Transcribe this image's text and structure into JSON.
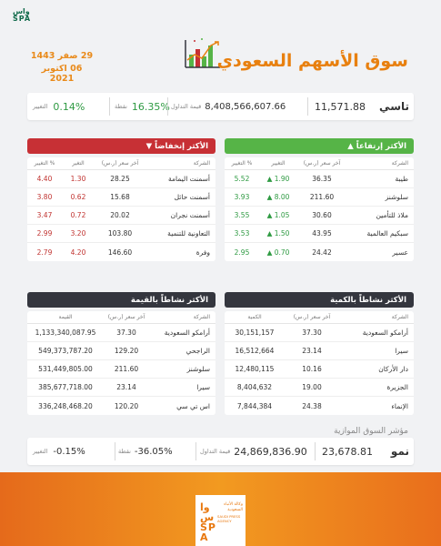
{
  "header": {
    "logo_line1": "واس",
    "logo_line2": "SPA",
    "date_hijri": "29 صفر 1443",
    "date_gregorian": "06 اكتوبر 2021",
    "title": "سوق الأسهم السعودي"
  },
  "summary": {
    "index_name": "تاسي",
    "index_value": "11,571.88",
    "turnover_value": "8,408,566,607.66",
    "turnover_label": "قيمة التداول",
    "points_value": "16.35%",
    "points_label": "نقطة",
    "change_value": "0.14%",
    "change_label": "التغيير"
  },
  "gainers": {
    "title": "الأكثر إرتفاعاً",
    "columns": [
      "الشركة",
      "آخر سعر (ر.س)",
      "التغيير",
      "التغيير %"
    ],
    "rows": [
      {
        "company": "طيبة",
        "price": "36.35",
        "change": "1.90",
        "pct": "5.52"
      },
      {
        "company": "سلوشنز",
        "price": "211.60",
        "change": "8.00",
        "pct": "3.93"
      },
      {
        "company": "ملاذ للتأمين",
        "price": "30.60",
        "change": "1.05",
        "pct": "3.55"
      },
      {
        "company": "سبكيم العالمية",
        "price": "43.95",
        "change": "1.50",
        "pct": "3.53"
      },
      {
        "company": "عسير",
        "price": "24.42",
        "change": "0.70",
        "pct": "2.95"
      }
    ]
  },
  "losers": {
    "title": "الأكثر إنخفاضاً",
    "columns": [
      "الشركة",
      "آخر سعر (ر.س)",
      "التغير",
      "التغيير %"
    ],
    "rows": [
      {
        "company": "أسمنت اليمامة",
        "price": "28.25",
        "change": "1.30",
        "pct": "4.40"
      },
      {
        "company": "أسمنت حائل",
        "price": "15.68",
        "change": "0.62",
        "pct": "3.80"
      },
      {
        "company": "أسمنت نجران",
        "price": "20.02",
        "change": "0.72",
        "pct": "3.47"
      },
      {
        "company": "التعاونية للتنمية",
        "price": "103.80",
        "change": "3.20",
        "pct": "2.99"
      },
      {
        "company": "وفرة",
        "price": "146.60",
        "change": "4.20",
        "pct": "2.79"
      }
    ]
  },
  "by_quantity": {
    "title": "الأكثر نشاطاً بالكمية",
    "columns": [
      "الشركة",
      "آخر سعر (ر.س)",
      "الكمية"
    ],
    "rows": [
      {
        "company": "أرامكو السعودية",
        "price": "37.30",
        "qty": "30,151,157"
      },
      {
        "company": "سيرا",
        "price": "23.14",
        "qty": "16,512,664"
      },
      {
        "company": "دار الأركان",
        "price": "10.16",
        "qty": "12,480,115"
      },
      {
        "company": "الجزيرة",
        "price": "19.00",
        "qty": "8,404,632"
      },
      {
        "company": "الإنماء",
        "price": "24.38",
        "qty": "7,844,384"
      }
    ]
  },
  "by_value": {
    "title": "الأكثر نشاطاً بالقيمة",
    "columns": [
      "الشركة",
      "آخر سعر (ر.س)",
      "القيمة"
    ],
    "rows": [
      {
        "company": "أرامكو السعودية",
        "price": "37.30",
        "value": "1,133,340,087.95"
      },
      {
        "company": "الراجحي",
        "price": "129.20",
        "value": "549,373,787.20"
      },
      {
        "company": "سلوشنز",
        "price": "211.60",
        "value": "531,449,805.00"
      },
      {
        "company": "سيرا",
        "price": "23.14",
        "value": "385,677,718.00"
      },
      {
        "company": "اس تي سي",
        "price": "120.20",
        "value": "336,248,468.20"
      }
    ]
  },
  "parallel": {
    "title": "مؤشر السوق الموازية",
    "index_name": "نمو",
    "index_value": "23,678.81",
    "turnover_value": "24,869,836.90",
    "turnover_label": "قيمة التداول",
    "points_value": "-36.05%",
    "points_label": "نقطة",
    "change_value": "-0.15%",
    "change_label": "التغيير"
  },
  "footer": {
    "logo_mark": "واس SPA",
    "agency_ar": "وكالة الأنباء السعودية",
    "agency_en": "SAUDI PRESS AGENCY"
  },
  "colors": {
    "accent": "#e8800f",
    "positive": "#56b447",
    "negative": "#c73035",
    "dark": "#34363e"
  }
}
